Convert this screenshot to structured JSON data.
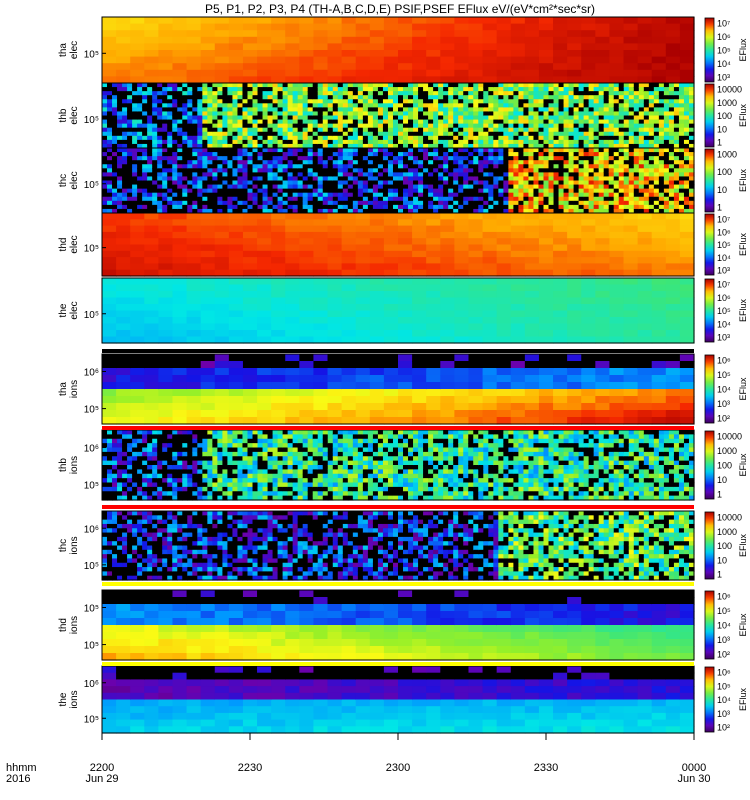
{
  "title": "P5, P1, P2, P3, P4 (TH-A,B,C,D,E) PSIF,PSEF EFlux eV/(eV*cm²*sec*sr)",
  "colorbar_label": "EFlux",
  "time_axis": {
    "row1_label": "hhmm",
    "row2_label": "2016",
    "ticks": [
      {
        "time": "2200",
        "date": "Jun 29"
      },
      {
        "time": "2230",
        "date": ""
      },
      {
        "time": "2300",
        "date": ""
      },
      {
        "time": "2330",
        "date": ""
      },
      {
        "time": "0000",
        "date": "Jun 30"
      }
    ]
  },
  "chart_data": {
    "type": "heatmap",
    "title": "P5, P1, P2, P3, P4 (TH-A,B,C,D,E) PSIF,PSEF EFlux eV/(eV*cm²*sec*sr)",
    "x_range": [
      "2016-06-29 22:00",
      "2016-06-30 00:00"
    ],
    "x_ticks": [
      "2200",
      "2230",
      "2300",
      "2330",
      "0000"
    ],
    "colormap": "rainbow",
    "log_scale": true,
    "panels": [
      {
        "probe": "tha",
        "species": "elec",
        "ylabel": [
          "tha",
          "elec"
        ],
        "y_tick": "10⁵",
        "colorbar_ticks": [
          "10⁷",
          "10⁶",
          "10⁵",
          "10⁴",
          "10³"
        ],
        "colorbar_label": "EFlux",
        "pattern": "smooth",
        "lo_start": 0.72,
        "lo_end": 0.98,
        "hi_start": 0.86,
        "hi_end": 1.0
      },
      {
        "probe": "thb",
        "species": "elec",
        "ylabel": [
          "thb",
          "elec"
        ],
        "y_tick": "10⁵",
        "colorbar_ticks": [
          "10000",
          "1000",
          "100",
          "10",
          "1"
        ],
        "colorbar_label": "EFlux",
        "pattern": "noisy",
        "noise_level": 0.25,
        "burst_start": 0.17,
        "burst_level": 0.55
      },
      {
        "probe": "thc",
        "species": "elec",
        "ylabel": [
          "thc",
          "elec"
        ],
        "y_tick": "10⁵",
        "colorbar_ticks": [
          "1000",
          "100",
          "10",
          "1"
        ],
        "colorbar_label": "EFlux",
        "pattern": "noisy",
        "noise_level": 0.2,
        "burst_start": 0.69,
        "burst_level": 0.7
      },
      {
        "probe": "thd",
        "species": "elec",
        "ylabel": [
          "thd",
          "elec"
        ],
        "y_tick": "10⁵",
        "colorbar_ticks": [
          "10⁷",
          "10⁶",
          "10⁵",
          "10⁴",
          "10³"
        ],
        "colorbar_label": "EFlux",
        "pattern": "smooth",
        "lo_start": 0.88,
        "lo_end": 0.74,
        "hi_start": 0.96,
        "hi_end": 0.86
      },
      {
        "probe": "the",
        "species": "elec",
        "ylabel": [
          "the",
          "elec"
        ],
        "y_tick": "10⁵",
        "colorbar_ticks": [
          "10⁷",
          "10⁶",
          "10⁵",
          "10⁴",
          "10³"
        ],
        "colorbar_label": "EFlux",
        "pattern": "smooth",
        "lo_start": 0.5,
        "lo_end": 0.56,
        "hi_start": 0.4,
        "hi_end": 0.52
      },
      {
        "probe": "tha",
        "species": "ions",
        "ylabel": [
          "tha",
          "ions"
        ],
        "y_ticks": [
          "10⁶",
          "10⁵"
        ],
        "colorbar_ticks": [
          "10⁶",
          "10⁵",
          "10⁴",
          "10³",
          "10²"
        ],
        "colorbar_label": "EFlux",
        "pattern": "ions",
        "top_start": 0.2,
        "top_end": 0.35,
        "bot_start": 0.72,
        "bot_end": 0.97
      },
      {
        "probe": "thb",
        "species": "ions",
        "ylabel": [
          "thb",
          "ions"
        ],
        "y_ticks": [
          "10⁶",
          "10⁵"
        ],
        "colorbar_ticks": [
          "10000",
          "1000",
          "100",
          "10",
          "1"
        ],
        "colorbar_label": "EFlux",
        "pattern": "noisy_ions",
        "noise_level": 0.2,
        "burst_start": 0.17,
        "burst_level": 0.45
      },
      {
        "probe": "thc",
        "species": "ions",
        "ylabel": [
          "thc",
          "ions"
        ],
        "y_ticks": [
          "10⁶",
          "10⁵"
        ],
        "colorbar_ticks": [
          "10000",
          "1000",
          "100",
          "10",
          "1"
        ],
        "colorbar_label": "EFlux",
        "pattern": "noisy_ions",
        "noise_level": 0.18,
        "burst_start": 0.67,
        "burst_level": 0.5
      },
      {
        "probe": "thd",
        "species": "ions",
        "ylabel": [
          "thd",
          "ions"
        ],
        "y_ticks": [
          "10⁵",
          "10⁵"
        ],
        "colorbar_ticks": [
          "10⁶",
          "10⁵",
          "10⁴",
          "10³",
          "10²"
        ],
        "colorbar_label": "EFlux",
        "pattern": "ions",
        "top_start": 0.35,
        "top_end": 0.2,
        "bot_start": 0.82,
        "bot_end": 0.6
      },
      {
        "probe": "the",
        "species": "ions",
        "ylabel": [
          "the",
          "ions"
        ],
        "y_ticks": [
          "10⁶",
          "10⁵"
        ],
        "colorbar_ticks": [
          "10⁶",
          "10⁵",
          "10⁴",
          "10³",
          "10²"
        ],
        "colorbar_label": "EFlux",
        "pattern": "ions",
        "top_start": 0.12,
        "top_end": 0.2,
        "bot_start": 0.42,
        "bot_end": 0.45
      }
    ]
  }
}
